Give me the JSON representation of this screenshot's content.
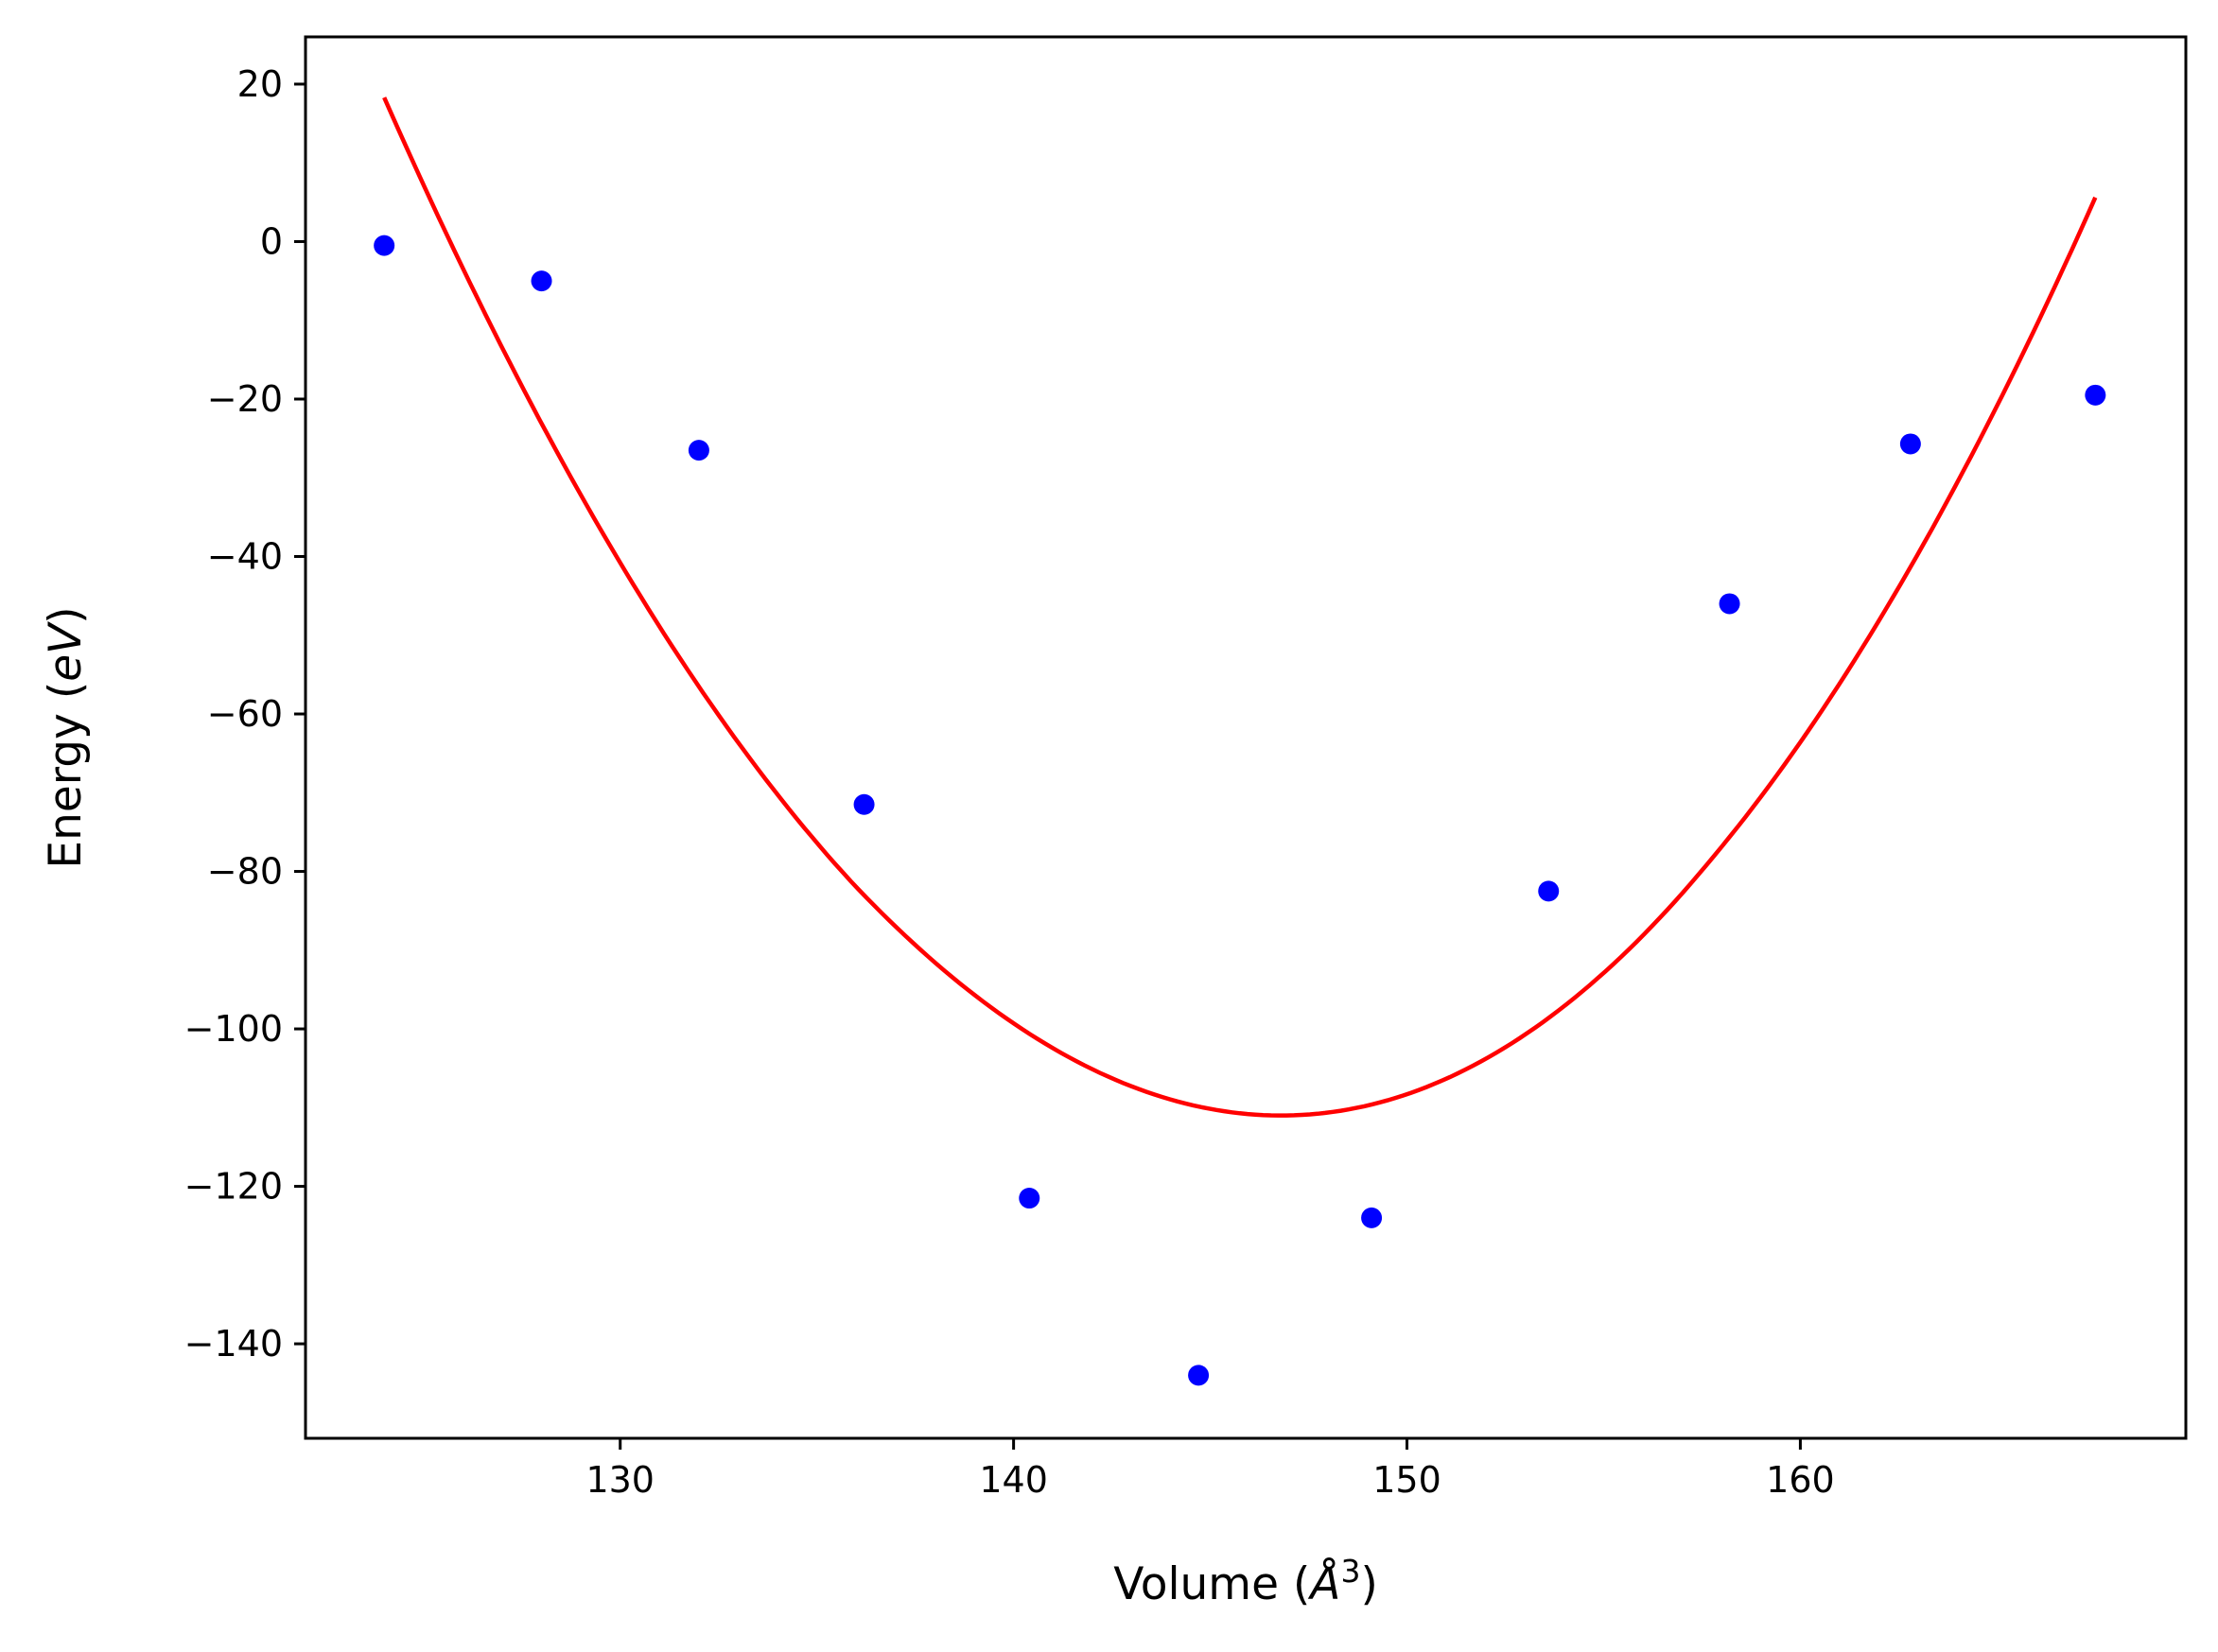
{
  "chart_data": {
    "type": "scatter",
    "xlabel_parts": [
      "Volume (",
      "Å",
      "3",
      ")"
    ],
    "ylabel_parts": [
      "Energy (",
      "eV",
      ")"
    ],
    "xlim": [
      122,
      169.8
    ],
    "ylim": [
      -152,
      26
    ],
    "xticks": [
      130,
      140,
      150,
      160
    ],
    "yticks": [
      20,
      0,
      -20,
      -40,
      -60,
      -80,
      -100,
      -120,
      -140
    ],
    "xtick_labels": [
      "130",
      "140",
      "150",
      "160"
    ],
    "ytick_labels": [
      "20",
      "0",
      "−20",
      "−40",
      "−60",
      "−80",
      "−100",
      "−120",
      "−140"
    ],
    "grid": false,
    "series": [
      {
        "kind": "points",
        "color": "#0000ff",
        "x": [
          124.0,
          128.0,
          132.0,
          136.2,
          140.4,
          144.7,
          149.1,
          153.6,
          158.2,
          162.8,
          167.5
        ],
        "y": [
          -0.5,
          -5.0,
          -26.5,
          -71.5,
          -121.5,
          -144.0,
          -124.0,
          -82.5,
          -46.0,
          -25.7,
          -19.5
        ]
      },
      {
        "kind": "line",
        "color": "#ff0000",
        "fit": {
          "x_min": 124.0,
          "x_max": 167.5,
          "x_at_min": 146.8,
          "y_min": -111.0,
          "y_left": 18.3,
          "y_right": 5.6
        }
      }
    ]
  }
}
